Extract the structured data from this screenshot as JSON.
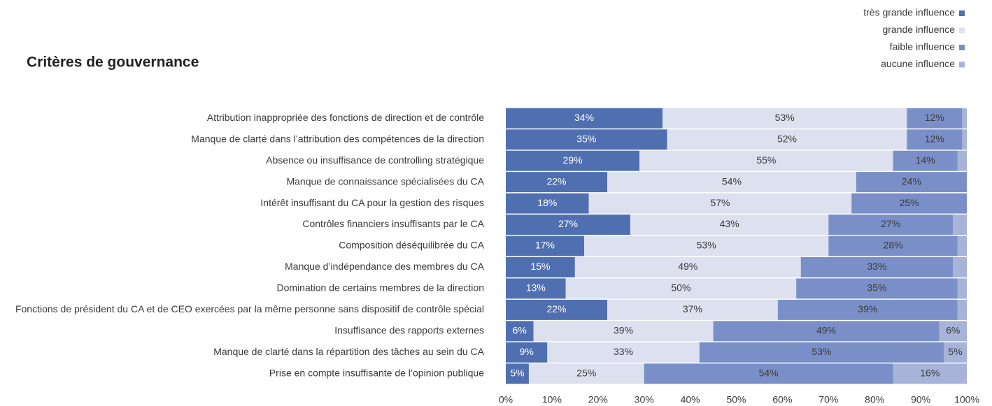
{
  "chart_data": {
    "type": "bar",
    "orientation": "horizontal",
    "stacked": true,
    "title": "Critères de gouvernance",
    "legend": "top-right",
    "grid": false,
    "categories": [
      "Attribution inappropriée des fonctions de direction et de contrôle",
      "Manque de clarté dans l’attribution des compétences de la direction",
      "Absence ou insuffisance de controlling stratégique",
      "Manque de connaissance spécialisées du CA",
      "Intérêt insuffisant du CA pour la gestion des risques",
      "Contrôles financiers insuffisants par le CA",
      "Composition déséquilibrée du CA",
      "Manque d’indépendance des membres du CA",
      "Domination de certains membres de la direction",
      "Fonctions de président du CA et de CEO exercées par la même personne sans dispositif de contrôle spécial",
      "Insuffisance des rapports externes",
      "Manque de clarté dans la répartition des tâches au sein du CA",
      "Prise en compte insuffisante de l’opinion publique"
    ],
    "series": [
      {
        "name": "très grande influence",
        "color": "#4f6fb1",
        "values": [
          34,
          35,
          29,
          22,
          18,
          27,
          17,
          15,
          13,
          22,
          6,
          9,
          5
        ],
        "value_labels": [
          "34%",
          "35%",
          "29%",
          "22%",
          "18%",
          "27%",
          "17%",
          "15%",
          "13%",
          "22%",
          "6%",
          "9%",
          "5%"
        ]
      },
      {
        "name": "grande influence",
        "color": "#dde0ee",
        "values": [
          53,
          52,
          55,
          54,
          57,
          43,
          53,
          49,
          50,
          37,
          39,
          33,
          25
        ],
        "value_labels": [
          "53%",
          "52%",
          "55%",
          "54%",
          "57%",
          "43%",
          "53%",
          "49%",
          "50%",
          "37%",
          "39%",
          "33%",
          "25%"
        ]
      },
      {
        "name": "faible influence",
        "color": "#7a8fc7",
        "values": [
          12,
          12,
          14,
          24,
          25,
          27,
          28,
          33,
          35,
          39,
          49,
          53,
          54
        ],
        "value_labels": [
          "12%",
          "12%",
          "14%",
          "24%",
          "25%",
          "27%",
          "28%",
          "33%",
          "35%",
          "39%",
          "49%",
          "53%",
          "54%"
        ]
      },
      {
        "name": "aucune influence",
        "color": "#a7b3d8",
        "values": [
          1,
          1,
          2,
          0,
          0,
          3,
          2,
          3,
          2,
          2,
          6,
          5,
          16
        ],
        "value_labels": [
          null,
          null,
          null,
          null,
          null,
          null,
          null,
          null,
          null,
          null,
          "6%",
          "5%",
          "16%"
        ]
      }
    ],
    "xlim": [
      0,
      100
    ],
    "xticks": [
      {
        "value": 0,
        "label": "0%"
      },
      {
        "value": 10,
        "label": "10%"
      },
      {
        "value": 20,
        "label": "20%"
      },
      {
        "value": 30,
        "label": "30%"
      },
      {
        "value": 40,
        "label": "40%"
      },
      {
        "value": 50,
        "label": "50%"
      },
      {
        "value": 60,
        "label": "60%"
      },
      {
        "value": 70,
        "label": "70%"
      },
      {
        "value": 80,
        "label": "80%"
      },
      {
        "value": 90,
        "label": "90%"
      },
      {
        "value": 100,
        "label": "100%"
      }
    ]
  }
}
